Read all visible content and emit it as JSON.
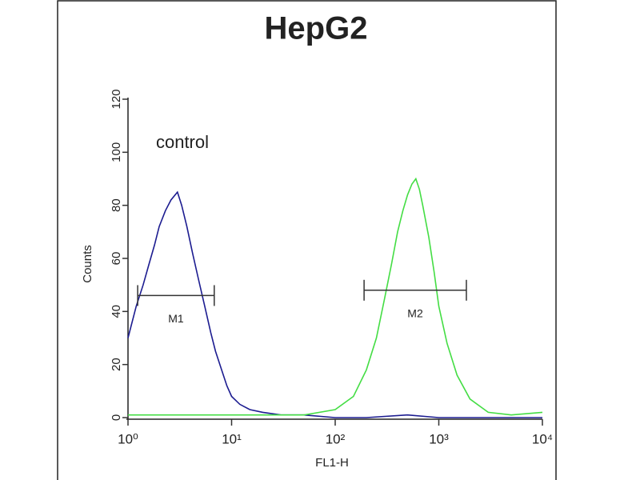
{
  "chart_data": {
    "type": "histogram-overlay",
    "title": "HepG2",
    "xlabel": "FL1-H",
    "ylabel": "Counts",
    "annotation": "control",
    "xscale": "log",
    "xlim": [
      1,
      10000
    ],
    "ylim": [
      0,
      120
    ],
    "xticks": [
      {
        "value": 1,
        "label": "10⁰"
      },
      {
        "value": 10,
        "label": "10¹"
      },
      {
        "value": 100,
        "label": "10²"
      },
      {
        "value": 1000,
        "label": "10³"
      },
      {
        "value": 10000,
        "label": "10⁴"
      }
    ],
    "yticks": [
      0,
      20,
      40,
      60,
      80,
      100,
      120
    ],
    "series": [
      {
        "color": "#1c1c90",
        "x": [
          1,
          1.2,
          1.4,
          1.6,
          1.8,
          2,
          2.3,
          2.6,
          3,
          3.3,
          3.7,
          4.2,
          4.8,
          5.5,
          6.3,
          7,
          8,
          9,
          10,
          12,
          15,
          20,
          30,
          50,
          100,
          200,
          500,
          1000,
          10000
        ],
        "values": [
          30,
          42,
          50,
          58,
          65,
          72,
          78,
          82,
          85,
          80,
          72,
          62,
          52,
          42,
          32,
          25,
          18,
          12,
          8,
          5,
          3,
          2,
          1,
          1,
          0,
          0,
          1,
          0,
          0
        ]
      },
      {
        "color": "#44dd44",
        "x": [
          1,
          10,
          50,
          100,
          150,
          200,
          250,
          300,
          350,
          400,
          450,
          500,
          550,
          600,
          650,
          700,
          800,
          900,
          1000,
          1200,
          1500,
          2000,
          3000,
          5000,
          10000
        ],
        "values": [
          1,
          1,
          1,
          3,
          8,
          18,
          30,
          45,
          58,
          70,
          78,
          84,
          88,
          90,
          86,
          80,
          68,
          55,
          42,
          28,
          16,
          7,
          2,
          1,
          2
        ]
      }
    ],
    "markers": [
      {
        "label": "M1",
        "range": [
          1.24,
          6.8
        ],
        "y": 46
      },
      {
        "label": "M2",
        "range": [
          190,
          1846
        ],
        "y": 48
      }
    ]
  }
}
